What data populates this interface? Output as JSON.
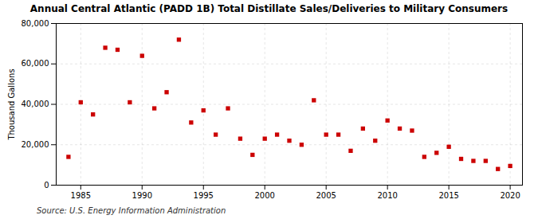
{
  "chart_data": {
    "type": "scatter",
    "title": "Annual Central Atlantic (PADD 1B) Total Distillate Sales/Deliveries to Military Consumers",
    "ylabel": "Thousand Gallons",
    "annotations": [
      "Source: U.S. Energy Information Administration"
    ],
    "x": [
      1984,
      1985,
      1986,
      1987,
      1988,
      1989,
      1990,
      1991,
      1992,
      1993,
      1994,
      1995,
      1996,
      1997,
      1998,
      1999,
      2000,
      2001,
      2002,
      2003,
      2004,
      2005,
      2006,
      2007,
      2008,
      2009,
      2010,
      2011,
      2012,
      2013,
      2014,
      2015,
      2016,
      2017,
      2018,
      2019,
      2020
    ],
    "values": [
      14000,
      41000,
      35000,
      68000,
      67000,
      41000,
      64000,
      38000,
      46000,
      72000,
      31000,
      37000,
      25000,
      38000,
      23000,
      15000,
      23000,
      25000,
      22000,
      20000,
      42000,
      25000,
      25000,
      17000,
      28000,
      22000,
      32000,
      28000,
      27000,
      14000,
      16000,
      19000,
      13000,
      12000,
      12000,
      8000,
      9500
    ],
    "color": "#cc0000",
    "marker": "square",
    "xlim": [
      1983,
      2021
    ],
    "ylim": [
      0,
      80000
    ],
    "xticks": [
      1985,
      1990,
      1995,
      2000,
      2005,
      2010,
      2015,
      2020
    ],
    "yticks": [
      0,
      {
        "value": 20000,
        "label": "20,000"
      },
      {
        "value": 40000,
        "label": "40,000"
      },
      {
        "value": 60000,
        "label": "60,000"
      },
      {
        "value": 80000,
        "label": "80,000"
      }
    ],
    "grid": true
  }
}
